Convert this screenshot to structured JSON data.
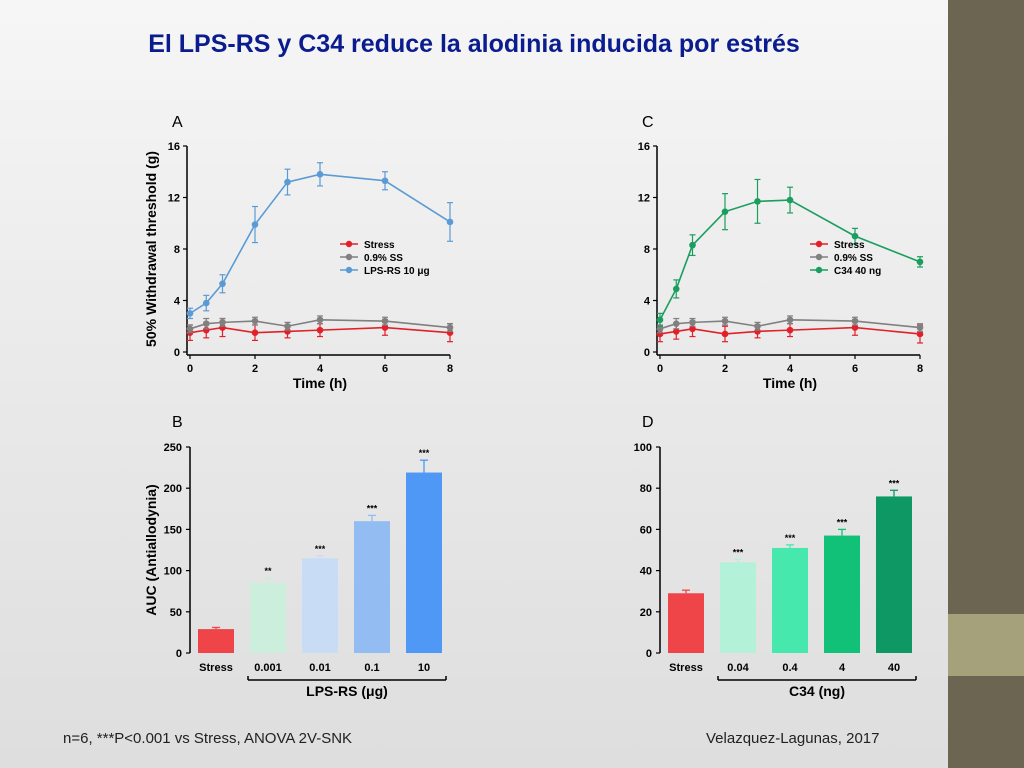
{
  "slide": {
    "title": "El LPS-RS y C34 reduce la alodinia inducida por estrés",
    "footnote": "n=6, ***P<0.001 vs Stress, ANOVA 2V-SNK",
    "citation": "Velazquez-Lagunas, 2017"
  },
  "theme": {
    "sidebar_top": "#6b6551",
    "sidebar_mid": "#a5a17a",
    "sidebar_bot": "#6b6551",
    "stress": "#e3202a",
    "saline": "#808080",
    "lps": "#5b9bd5",
    "c34": "#1a9e5f"
  },
  "chart_data": [
    {
      "id": "A",
      "type": "line",
      "letter": "A",
      "xlabel": "Time (h)",
      "ylabel": "50% Withdrawal threshold (g)",
      "xlim": [
        0,
        8
      ],
      "ylim": [
        0,
        16
      ],
      "xticks": [
        "0",
        "2",
        "4",
        "6",
        "8"
      ],
      "yticks": [
        "0",
        "4",
        "8",
        "12",
        "16"
      ],
      "legend_position": "center-right",
      "series": [
        {
          "name": "Stress",
          "color": "#e3202a",
          "x": [
            0,
            0.5,
            1,
            2,
            3,
            4,
            6,
            8
          ],
          "y": [
            1.5,
            1.7,
            1.9,
            1.5,
            1.6,
            1.7,
            1.9,
            1.5
          ],
          "err": [
            0.6,
            0.6,
            0.7,
            0.6,
            0.5,
            0.5,
            0.6,
            0.7
          ]
        },
        {
          "name": "0.9% SS",
          "color": "#808080",
          "x": [
            0,
            0.5,
            1,
            2,
            3,
            4,
            6,
            8
          ],
          "y": [
            1.8,
            2.2,
            2.3,
            2.4,
            2.0,
            2.5,
            2.4,
            1.9
          ],
          "err": [
            0.3,
            0.4,
            0.3,
            0.3,
            0.3,
            0.3,
            0.3,
            0.3
          ]
        },
        {
          "name": "LPS-RS 10 μg",
          "color": "#5b9bd5",
          "x": [
            0,
            0.5,
            1,
            2,
            3,
            4,
            6,
            8
          ],
          "y": [
            3.0,
            3.8,
            5.3,
            9.9,
            13.2,
            13.8,
            13.3,
            10.1
          ],
          "err": [
            0.4,
            0.6,
            0.7,
            1.4,
            1.0,
            0.9,
            0.7,
            1.5
          ]
        }
      ]
    },
    {
      "id": "C",
      "type": "line",
      "letter": "C",
      "xlabel": "Time (h)",
      "ylabel": "",
      "xlim": [
        0,
        8
      ],
      "ylim": [
        0,
        16
      ],
      "xticks": [
        "0",
        "2",
        "4",
        "6",
        "8"
      ],
      "yticks": [
        "0",
        "4",
        "8",
        "12",
        "16"
      ],
      "legend_position": "center-right",
      "series": [
        {
          "name": "Stress",
          "color": "#e3202a",
          "x": [
            0,
            0.5,
            1,
            2,
            3,
            4,
            6,
            8
          ],
          "y": [
            1.4,
            1.6,
            1.8,
            1.4,
            1.6,
            1.7,
            1.9,
            1.4
          ],
          "err": [
            0.6,
            0.6,
            0.6,
            0.6,
            0.5,
            0.5,
            0.6,
            0.7
          ]
        },
        {
          "name": "0.9% SS",
          "color": "#808080",
          "x": [
            0,
            0.5,
            1,
            2,
            3,
            4,
            6,
            8
          ],
          "y": [
            1.8,
            2.2,
            2.3,
            2.4,
            2.0,
            2.5,
            2.4,
            1.9
          ],
          "err": [
            0.3,
            0.4,
            0.3,
            0.3,
            0.3,
            0.3,
            0.3,
            0.3
          ]
        },
        {
          "name": "C34 40 ng",
          "color": "#1a9e5f",
          "x": [
            0,
            0.5,
            1,
            2,
            3,
            4,
            6,
            8
          ],
          "y": [
            2.5,
            4.9,
            8.3,
            10.9,
            11.7,
            11.8,
            9.0,
            7.0
          ],
          "err": [
            0.5,
            0.7,
            0.8,
            1.4,
            1.7,
            1.0,
            0.6,
            0.4
          ]
        }
      ]
    },
    {
      "id": "B",
      "type": "bar",
      "letter": "B",
      "ylabel": "AUC (Antiallodynia)",
      "ylim": [
        0,
        250
      ],
      "yticks": [
        "0",
        "50",
        "100",
        "150",
        "200",
        "250"
      ],
      "categories": [
        "Stress",
        "0.001",
        "0.01",
        "0.1",
        "10"
      ],
      "values": [
        29,
        85,
        115,
        160,
        219
      ],
      "errors": [
        2,
        6,
        3,
        7,
        15
      ],
      "stars": [
        "",
        "**",
        "***",
        "***",
        "***"
      ],
      "colors": [
        "#f04548",
        "#cbeedd",
        "#c9dcf6",
        "#93bdf2",
        "#4f98f5"
      ],
      "group_label": "LPS-RS (μg)"
    },
    {
      "id": "D",
      "type": "bar",
      "letter": "D",
      "ylabel": "",
      "ylim": [
        0,
        100
      ],
      "yticks": [
        "0",
        "20",
        "40",
        "60",
        "80",
        "100"
      ],
      "categories": [
        "Stress",
        "0.04",
        "0.4",
        "4",
        "40"
      ],
      "values": [
        29,
        44,
        51,
        57,
        76
      ],
      "errors": [
        1.5,
        1.5,
        1.5,
        3,
        3
      ],
      "stars": [
        "",
        "***",
        "***",
        "***",
        "***"
      ],
      "colors": [
        "#f04548",
        "#b3f2d9",
        "#46e8ad",
        "#10c177",
        "#0e9964"
      ],
      "group_label": "C34 (ng)"
    }
  ]
}
